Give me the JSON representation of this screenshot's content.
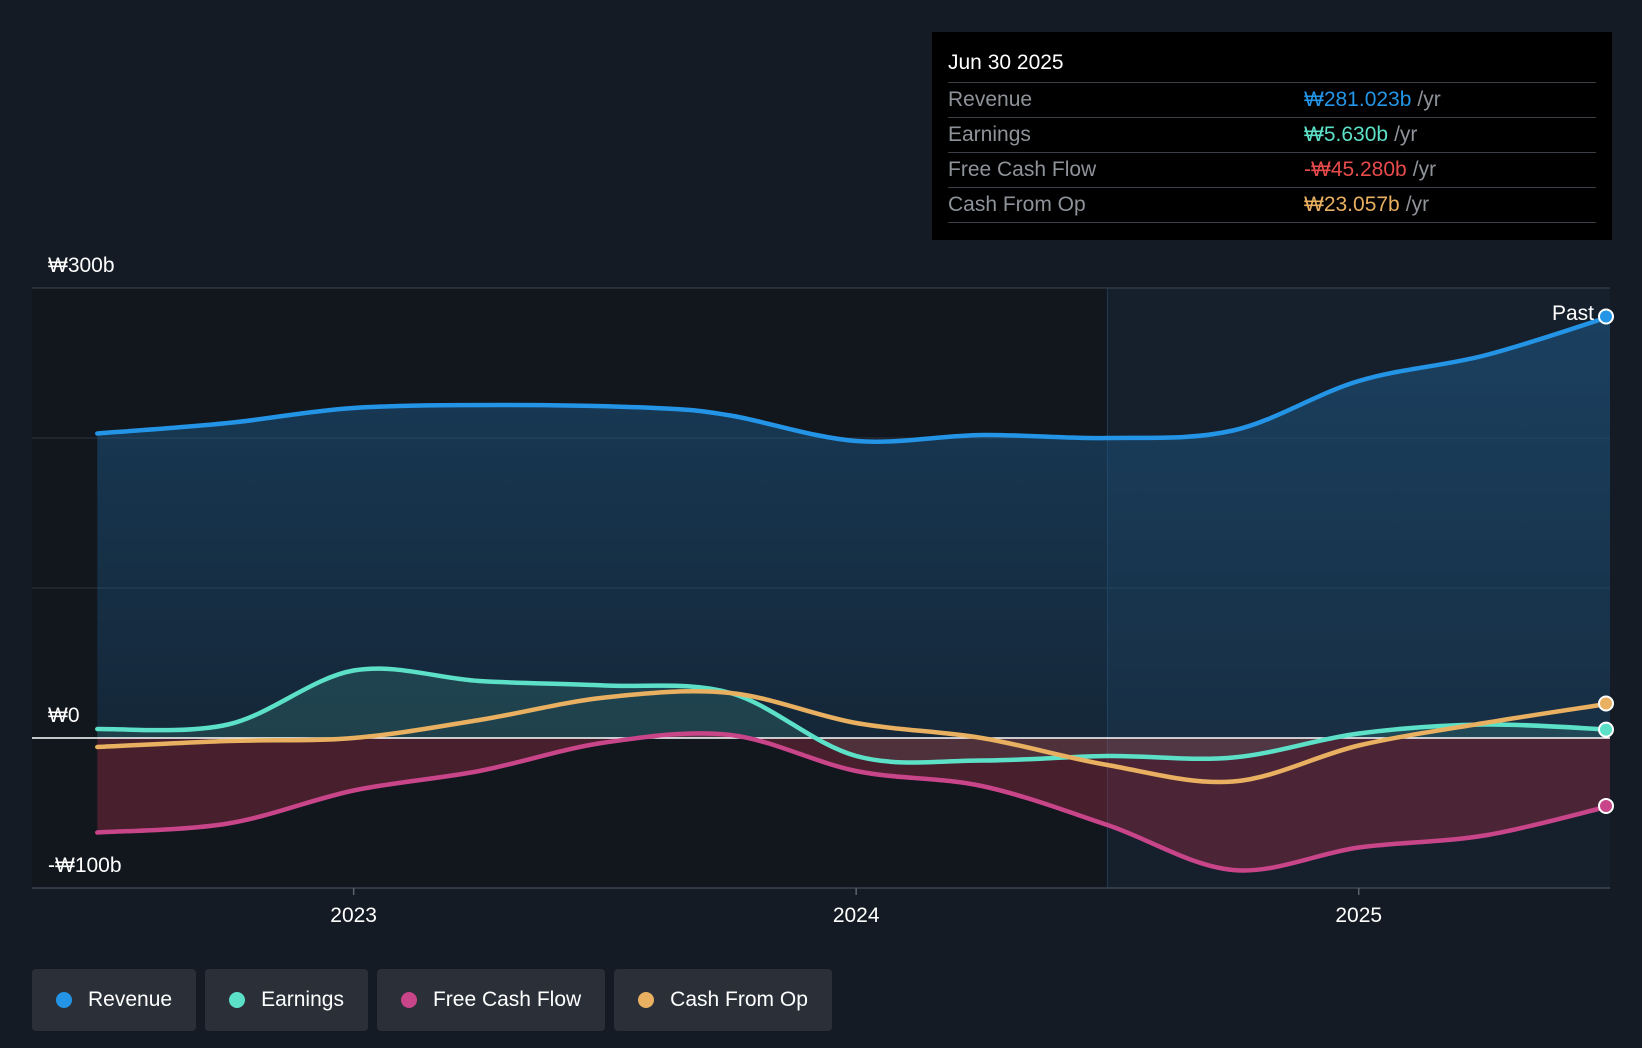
{
  "tooltip": {
    "date": "Jun 30 2025",
    "rows": [
      {
        "name": "Revenue",
        "value": "₩281.023b",
        "unit": "/yr",
        "color": "#2394e6"
      },
      {
        "name": "Earnings",
        "value": "₩5.630b",
        "unit": "/yr",
        "color": "#5de0c8"
      },
      {
        "name": "Free Cash Flow",
        "value": "-₩45.280b",
        "unit": "/yr",
        "color": "#e84b4b"
      },
      {
        "name": "Cash From Op",
        "value": "₩23.057b",
        "unit": "/yr",
        "color": "#e8b060"
      }
    ]
  },
  "legend": [
    {
      "label": "Revenue",
      "color": "#2394e6"
    },
    {
      "label": "Earnings",
      "color": "#5de0c8"
    },
    {
      "label": "Free Cash Flow",
      "color": "#c8458a"
    },
    {
      "label": "Cash From Op",
      "color": "#e8b060"
    }
  ],
  "chart_data": {
    "type": "line",
    "title": "",
    "xlabel": "",
    "ylabel": "",
    "ylim": [
      -100,
      300
    ],
    "xlim": [
      2022.36,
      2025.5
    ],
    "y_tick_labels": {
      "top": "₩300b",
      "zero": "₩0",
      "bottom": "-₩100b"
    },
    "x_ticks": [
      {
        "value": 2023.0,
        "label": "2023"
      },
      {
        "value": 2024.0,
        "label": "2024"
      },
      {
        "value": 2025.0,
        "label": "2025"
      }
    ],
    "past_divider_x": 2024.5,
    "past_label": "Past",
    "series": [
      {
        "name": "Revenue",
        "color": "#2394e6",
        "fill": true,
        "x": [
          2022.49,
          2022.75,
          2023.0,
          2023.3,
          2023.6,
          2023.75,
          2024.0,
          2024.25,
          2024.5,
          2024.75,
          2025.0,
          2025.25,
          2025.5
        ],
        "values": [
          203,
          210,
          220,
          222,
          220,
          215,
          198,
          202,
          200,
          205,
          238,
          255,
          281
        ]
      },
      {
        "name": "Earnings",
        "color": "#5de0c8",
        "fill": true,
        "x": [
          2022.49,
          2022.75,
          2023.0,
          2023.25,
          2023.5,
          2023.75,
          2024.0,
          2024.25,
          2024.5,
          2024.75,
          2025.0,
          2025.25,
          2025.5
        ],
        "values": [
          6,
          9,
          45,
          38,
          35,
          30,
          -12,
          -15,
          -12,
          -13,
          3,
          9,
          5.6
        ]
      },
      {
        "name": "Free Cash Flow",
        "color": "#c8458a",
        "fill": true,
        "x": [
          2022.49,
          2022.75,
          2023.0,
          2023.25,
          2023.5,
          2023.75,
          2024.0,
          2024.25,
          2024.5,
          2024.75,
          2025.0,
          2025.25,
          2025.5
        ],
        "values": [
          -63,
          -57,
          -35,
          -22,
          -3,
          2,
          -22,
          -32,
          -58,
          -88,
          -73,
          -65,
          -45.3
        ]
      },
      {
        "name": "Cash From Op",
        "color": "#e8b060",
        "fill": false,
        "x": [
          2022.49,
          2022.75,
          2023.0,
          2023.25,
          2023.5,
          2023.75,
          2024.0,
          2024.25,
          2024.5,
          2024.75,
          2025.0,
          2025.25,
          2025.5
        ],
        "values": [
          -6,
          -2,
          0,
          12,
          27,
          30,
          10,
          0,
          -18,
          -29,
          -5,
          10,
          23
        ]
      }
    ]
  }
}
